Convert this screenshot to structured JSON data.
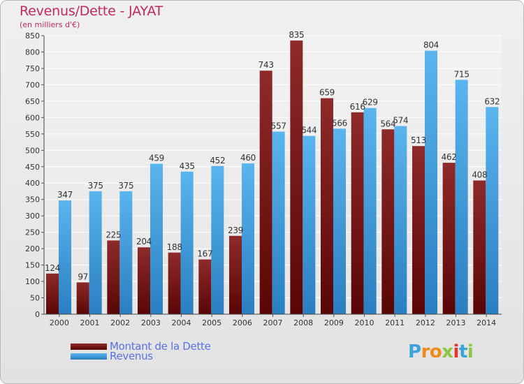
{
  "header": {
    "title": "Revenus/Dette - JAYAT",
    "subtitle": "(en milliers d'€)"
  },
  "legend": {
    "dette_label": "Montant de la Dette",
    "revenus_label": "Revenus"
  },
  "brand": {
    "name": "Proxiti"
  },
  "colors": {
    "dette": "#7a1515",
    "revenus": "#4aa6e6"
  },
  "chart_data": {
    "type": "bar",
    "title": "Revenus/Dette - JAYAT",
    "subtitle": "(en milliers d'€)",
    "categories": [
      "2000",
      "2001",
      "2002",
      "2003",
      "2004",
      "2005",
      "2006",
      "2007",
      "2008",
      "2009",
      "2010",
      "2011",
      "2012",
      "2013",
      "2014"
    ],
    "series": [
      {
        "name": "Montant de la Dette",
        "values": [
          124,
          97,
          225,
          204,
          188,
          167,
          239,
          743,
          835,
          659,
          616,
          564,
          513,
          462,
          408
        ]
      },
      {
        "name": "Revenus",
        "values": [
          347,
          375,
          375,
          459,
          435,
          452,
          460,
          557,
          544,
          566,
          629,
          574,
          804,
          715,
          632
        ]
      }
    ],
    "ylim": [
      0,
      850
    ],
    "yticks": [
      0,
      50,
      100,
      150,
      200,
      250,
      300,
      350,
      400,
      450,
      500,
      550,
      600,
      650,
      700,
      750,
      800,
      850
    ],
    "grid": true,
    "legend_position": "bottom-left"
  }
}
